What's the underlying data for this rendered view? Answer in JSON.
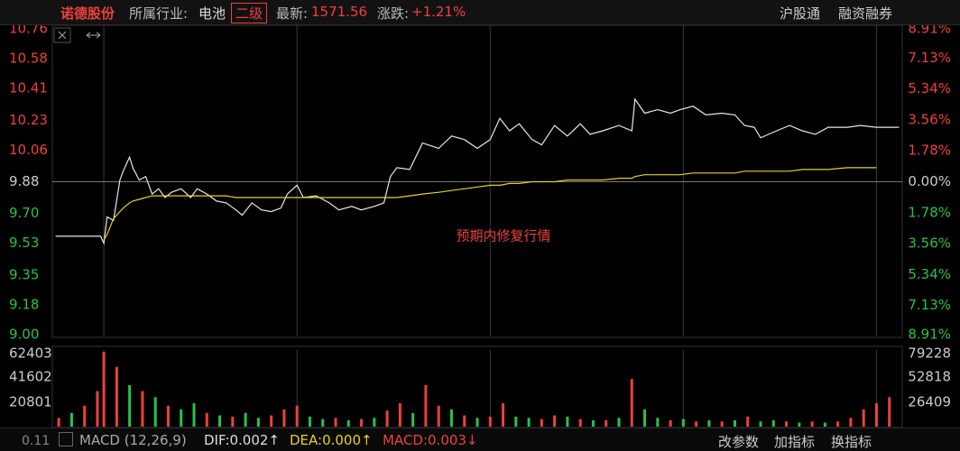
{
  "header": {
    "name": "诺德股份",
    "industry_label": "所属行业:",
    "industry": "电池",
    "level": "二级",
    "latest_label": "最新:",
    "latest": "1571.56",
    "change_label": "涨跌:",
    "change": "+1.21%",
    "buttons": [
      "沪股通",
      "融资融券"
    ]
  },
  "footer": {
    "axis_value": "0.11",
    "indicator": "MACD (12,26,9)",
    "dif": "DIF:0.002↑",
    "dea": "DEA:0.000↑",
    "macd": "MACD:0.003↓",
    "buttons": [
      "改参数",
      "加指标",
      "换指标"
    ]
  },
  "chart_data": [
    {
      "type": "line",
      "annotation": "预期内修复行情",
      "x": [
        -15,
        -1,
        0,
        1,
        3,
        5,
        6,
        8,
        9,
        11,
        13,
        15,
        17,
        19,
        21,
        24,
        27,
        29,
        32,
        35,
        38,
        41,
        43,
        46,
        49,
        52,
        55,
        57,
        60,
        62,
        66,
        70,
        73,
        77,
        80,
        84,
        87,
        89,
        91,
        95,
        99,
        104,
        108,
        112,
        116,
        120,
        123,
        126,
        129,
        133,
        136,
        140,
        144,
        148,
        151,
        155,
        160,
        164,
        165,
        168,
        172,
        176,
        179,
        183,
        187,
        192,
        196,
        199,
        202,
        204,
        209,
        213,
        217,
        221,
        225,
        231,
        235,
        240,
        247
      ],
      "series": [
        {
          "color": "#e8e8e8",
          "values": [
            9.57,
            9.57,
            9.53,
            9.68,
            9.66,
            9.89,
            9.94,
            10.02,
            9.96,
            9.89,
            9.91,
            9.81,
            9.84,
            9.79,
            9.82,
            9.84,
            9.79,
            9.84,
            9.81,
            9.77,
            9.76,
            9.72,
            9.69,
            9.76,
            9.72,
            9.71,
            9.73,
            9.81,
            9.86,
            9.79,
            9.8,
            9.76,
            9.72,
            9.74,
            9.72,
            9.74,
            9.76,
            9.91,
            9.96,
            9.95,
            10.1,
            10.07,
            10.14,
            10.12,
            10.07,
            10.12,
            10.24,
            10.17,
            10.21,
            10.12,
            10.09,
            10.2,
            10.14,
            10.21,
            10.15,
            10.17,
            10.2,
            10.17,
            10.35,
            10.27,
            10.29,
            10.27,
            10.29,
            10.31,
            10.26,
            10.27,
            10.26,
            10.2,
            10.19,
            10.13,
            10.17,
            10.2,
            10.17,
            10.15,
            10.19,
            10.19,
            10.2,
            10.19,
            10.19
          ]
        },
        {
          "color": "#e6d21e",
          "values": [
            null,
            null,
            9.55,
            9.58,
            9.67,
            9.71,
            9.73,
            9.76,
            9.77,
            9.78,
            9.79,
            9.8,
            9.8,
            9.8,
            9.8,
            9.8,
            9.8,
            9.8,
            9.8,
            9.8,
            9.8,
            9.79,
            9.79,
            9.79,
            9.79,
            9.79,
            9.79,
            9.79,
            9.79,
            9.79,
            9.79,
            9.79,
            9.79,
            9.79,
            9.79,
            9.79,
            9.79,
            9.79,
            9.79,
            9.8,
            9.81,
            9.82,
            9.83,
            9.84,
            9.85,
            9.86,
            9.86,
            9.87,
            9.87,
            9.88,
            9.88,
            9.88,
            9.89,
            9.89,
            9.89,
            9.89,
            9.9,
            9.9,
            9.91,
            9.92,
            9.92,
            9.92,
            9.92,
            9.93,
            9.93,
            9.93,
            9.93,
            9.94,
            9.94,
            9.94,
            9.94,
            9.94,
            9.95,
            9.95,
            9.95,
            9.96,
            9.96,
            9.96,
            null
          ]
        }
      ],
      "xlim": [
        -16,
        248
      ],
      "xticks": [
        0,
        60,
        120,
        180,
        240
      ],
      "grid": "x",
      "ylim": [
        9,
        10.76
      ],
      "yticks": [
        10.76,
        10.58,
        10.41,
        10.23,
        10.06,
        9.88,
        {
          "value": 9.7,
          "label": "9.70"
        },
        9.53,
        9.35,
        9.18,
        {
          "value": 9,
          "label": "9.00"
        }
      ],
      "y2lim": [
        -8.91,
        8.91
      ],
      "y2ticks": [
        {
          "value": 8.91,
          "label": "8.91%"
        },
        {
          "value": 7.13,
          "label": "7.13%"
        },
        {
          "value": 5.34,
          "label": "5.34%"
        },
        {
          "value": 3.56,
          "label": "3.56%"
        },
        {
          "value": 1.78,
          "label": "1.78%"
        },
        {
          "value": 0,
          "label": "0.00%"
        },
        {
          "value": -1.78,
          "label": "1.78%"
        },
        {
          "value": -3.56,
          "label": "3.56%"
        },
        {
          "value": -5.34,
          "label": "5.34%"
        },
        {
          "value": -7.13,
          "label": "7.13%"
        },
        {
          "value": -8.91,
          "label": "8.91%"
        }
      ]
    },
    {
      "type": "bar",
      "x": [
        -14,
        -10,
        -6,
        -2,
        0,
        4,
        8,
        12,
        16,
        20,
        24,
        28,
        32,
        36,
        40,
        44,
        48,
        52,
        56,
        60,
        64,
        68,
        72,
        76,
        80,
        84,
        88,
        92,
        96,
        100,
        104,
        108,
        112,
        116,
        120,
        124,
        128,
        132,
        136,
        140,
        144,
        148,
        152,
        156,
        160,
        164,
        168,
        172,
        176,
        180,
        184,
        188,
        192,
        196,
        200,
        204,
        208,
        212,
        216,
        220,
        224,
        228,
        232,
        236,
        240,
        244
      ],
      "values": [
        8000,
        12000,
        18000,
        30000,
        62403,
        50000,
        35000,
        30000,
        25000,
        18000,
        15000,
        20000,
        12000,
        10000,
        9000,
        12000,
        8000,
        10000,
        15000,
        18000,
        9000,
        7000,
        8000,
        6000,
        7000,
        8000,
        14000,
        20000,
        12000,
        35000,
        18000,
        15000,
        10000,
        8000,
        9000,
        20000,
        9000,
        8000,
        7000,
        10000,
        9000,
        7000,
        6000,
        6000,
        8000,
        40000,
        15000,
        8000,
        6000,
        7000,
        5000,
        6000,
        5000,
        6000,
        9000,
        5000,
        6000,
        5000,
        4000,
        5000,
        4000,
        5000,
        8000,
        15000,
        20000,
        25000
      ],
      "colors": [
        "#f0403c",
        "#27c24c",
        "#f0403c",
        "#f0403c",
        "#f0403c",
        "#f0403c",
        "#27c24c",
        "#f0403c",
        "#27c24c",
        "#f0403c",
        "#27c24c",
        "#27c24c",
        "#f0403c",
        "#27c24c",
        "#f0403c",
        "#27c24c",
        "#27c24c",
        "#f0403c",
        "#f0403c",
        "#f0403c",
        "#27c24c",
        "#27c24c",
        "#f0403c",
        "#27c24c",
        "#f0403c",
        "#27c24c",
        "#f0403c",
        "#f0403c",
        "#27c24c",
        "#f0403c",
        "#f0403c",
        "#27c24c",
        "#f0403c",
        "#27c24c",
        "#f0403c",
        "#f0403c",
        "#27c24c",
        "#27c24c",
        "#f0403c",
        "#f0403c",
        "#27c24c",
        "#f0403c",
        "#27c24c",
        "#f0403c",
        "#27c24c",
        "#f0403c",
        "#27c24c",
        "#27c24c",
        "#f0403c",
        "#27c24c",
        "#f0403c",
        "#27c24c",
        "#f0403c",
        "#27c24c",
        "#f0403c",
        "#27c24c",
        "#27c24c",
        "#f0403c",
        "#27c24c",
        "#f0403c",
        "#27c24c",
        "#f0403c",
        "#f0403c",
        "#f0403c",
        "#f0403c",
        "#f0403c"
      ],
      "xlim": [
        -16,
        248
      ],
      "xticks": [
        0,
        60,
        120,
        180,
        240
      ],
      "grid": "x",
      "ylim": [
        0,
        62403
      ],
      "yticks": [
        62403,
        41602,
        20801
      ],
      "y2lim": [
        0,
        79228
      ],
      "y2ticks": [
        79228,
        52818,
        26409
      ]
    }
  ]
}
